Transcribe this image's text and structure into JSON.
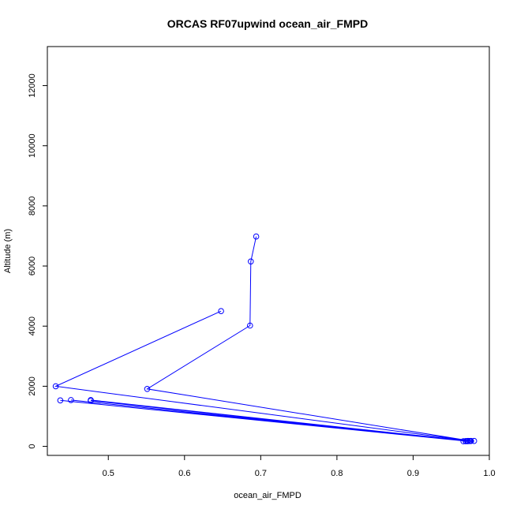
{
  "chart_data": {
    "type": "line",
    "title": "ORCAS RF07upwind ocean_air_FMPD",
    "xlabel": "ocean_air_FMPD",
    "ylabel": "Altitude (m)",
    "xlim": [
      0.42,
      1.0
    ],
    "ylim": [
      -300,
      13300
    ],
    "x_ticks": [
      0.5,
      0.6,
      0.7,
      0.8,
      0.9,
      1.0
    ],
    "x_tick_labels": [
      "0.5",
      "0.6",
      "0.7",
      "0.8",
      "0.9",
      "1.0"
    ],
    "y_ticks": [
      0,
      2000,
      4000,
      6000,
      8000,
      10000,
      12000
    ],
    "y_tick_labels": [
      "0",
      "2000",
      "4000",
      "6000",
      "8000",
      "10000",
      "12000"
    ],
    "grid": false,
    "markers": "open-circle",
    "series": [
      {
        "color": "#0000ff",
        "points": [
          {
            "x": 0.694,
            "y": 6980
          },
          {
            "x": 0.687,
            "y": 6150
          },
          {
            "x": 0.686,
            "y": 4020
          },
          {
            "x": 0.551,
            "y": 1910
          },
          {
            "x": 0.976,
            "y": 180
          },
          {
            "x": 0.431,
            "y": 2000
          },
          {
            "x": 0.648,
            "y": 4500
          }
        ]
      },
      {
        "color": "#0000ff",
        "points": [
          {
            "x": 0.98,
            "y": 180
          },
          {
            "x": 0.966,
            "y": 170
          },
          {
            "x": 0.972,
            "y": 175
          },
          {
            "x": 0.974,
            "y": 178
          },
          {
            "x": 0.969,
            "y": 172
          },
          {
            "x": 0.971,
            "y": 176
          }
        ]
      },
      {
        "color": "#0000ff",
        "points": [
          {
            "x": 0.477,
            "y": 1540
          },
          {
            "x": 0.972,
            "y": 180
          },
          {
            "x": 0.437,
            "y": 1530
          },
          {
            "x": 0.969,
            "y": 175
          },
          {
            "x": 0.451,
            "y": 1540
          },
          {
            "x": 0.975,
            "y": 178
          },
          {
            "x": 0.477,
            "y": 1520
          }
        ]
      }
    ]
  }
}
